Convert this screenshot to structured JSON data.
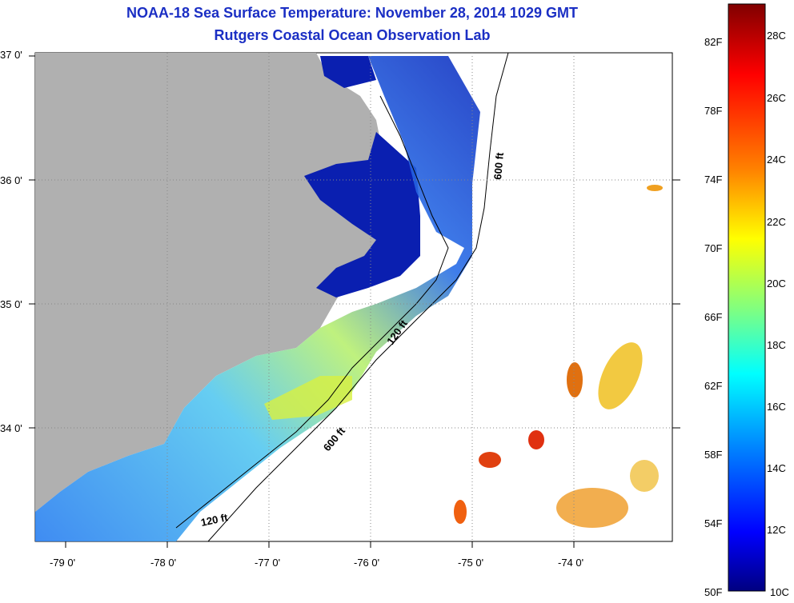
{
  "title_line1": "NOAA-18 Sea Surface Temperature:  November 28, 2014 1029 GMT",
  "title_line2": "Rutgers Coastal Ocean Observation Lab",
  "lat_labels": [
    "37 0'",
    "36 0'",
    "35 0'",
    "34 0'"
  ],
  "lon_labels": [
    "-79 0'",
    "-78 0'",
    "-77 0'",
    "-76 0'",
    "-75 0'",
    "-74 0'"
  ],
  "contour_labels": [
    "600 ft",
    "120 ft",
    "600 ft",
    "120 ft"
  ],
  "colorbar": {
    "fahrenheit": [
      "82F",
      "78F",
      "74F",
      "70F",
      "66F",
      "62F",
      "58F",
      "54F",
      "50F"
    ],
    "celsius": [
      "28C",
      "26C",
      "24C",
      "22C",
      "20C",
      "18C",
      "16C",
      "14C",
      "12C",
      "10C"
    ],
    "colors": [
      "#800000",
      "#ff0000",
      "#ff8000",
      "#ffff00",
      "#80ff80",
      "#00ffff",
      "#0080ff",
      "#0000ff",
      "#000080"
    ]
  },
  "land_color": "#b0b0b0"
}
